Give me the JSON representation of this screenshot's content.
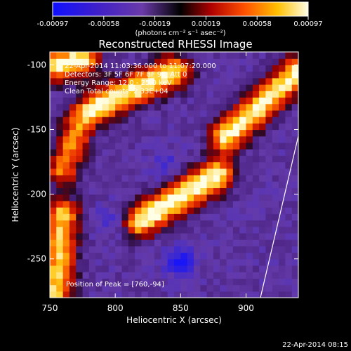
{
  "chart_data": {
    "type": "heatmap",
    "title": "Reconstructed RHESSI Image",
    "xlabel": "Heliocentric X (arcsec)",
    "ylabel": "Heliocentric Y (arcsec)",
    "xlim": [
      750,
      940
    ],
    "ylim": [
      -280,
      -90
    ],
    "xticks": [
      750,
      800,
      850,
      900
    ],
    "yticks": [
      -100,
      -150,
      -200,
      -250
    ],
    "xtick_labels": [
      "750",
      "800",
      "850",
      "900"
    ],
    "ytick_labels": [
      "-100",
      "-150",
      "-200",
      "-250"
    ],
    "colorbar": {
      "ticks": [
        "-0.00097",
        "-0.00058",
        "-0.00019",
        "0.00019",
        "0.00058",
        "0.00097"
      ],
      "range": [
        -0.00097,
        0.00097
      ],
      "unit_label": "(photons cm⁻² s⁻¹ asec⁻²)"
    },
    "annotations": [
      "22-Apr-2014 11:03:36.000 to 11:07:20.000",
      "Detectors: 3F 5F 6F 7F 8F 9F, Att 0",
      "Energy Range: 12.0 - 25.0 keV",
      "Clean    Total counts: 2.33E+04",
      "Position of Peak = [760,-94]"
    ],
    "bright_bands": [
      {
        "from": [
          790,
          -130
        ],
        "to": [
          845,
          -105
        ],
        "level": 0.95
      },
      {
        "from": [
          820,
          -220
        ],
        "to": [
          878,
          -185
        ],
        "level": 1.0
      },
      {
        "from": [
          885,
          -155
        ],
        "to": [
          940,
          -105
        ],
        "level": 0.95
      },
      {
        "from": [
          755,
          -275
        ],
        "to": [
          760,
          -215
        ],
        "level": 0.85
      },
      {
        "from": [
          760,
          -180
        ],
        "to": [
          775,
          -140
        ],
        "level": 0.7
      },
      {
        "from": [
          755,
          -100
        ],
        "to": [
          775,
          -95
        ],
        "level": 0.95
      }
    ],
    "dark_spots": [
      {
        "center": [
          850,
          -252
        ],
        "level": -0.6
      },
      {
        "center": [
          838,
          -178
        ],
        "level": -0.3
      },
      {
        "center": [
          795,
          -220
        ],
        "level": -0.3
      }
    ],
    "limb_line": {
      "from": [
        940,
        -155
      ],
      "to": [
        911,
        -280
      ]
    }
  },
  "footer": {
    "timestamp": "22-Apr-2014 08:15"
  }
}
